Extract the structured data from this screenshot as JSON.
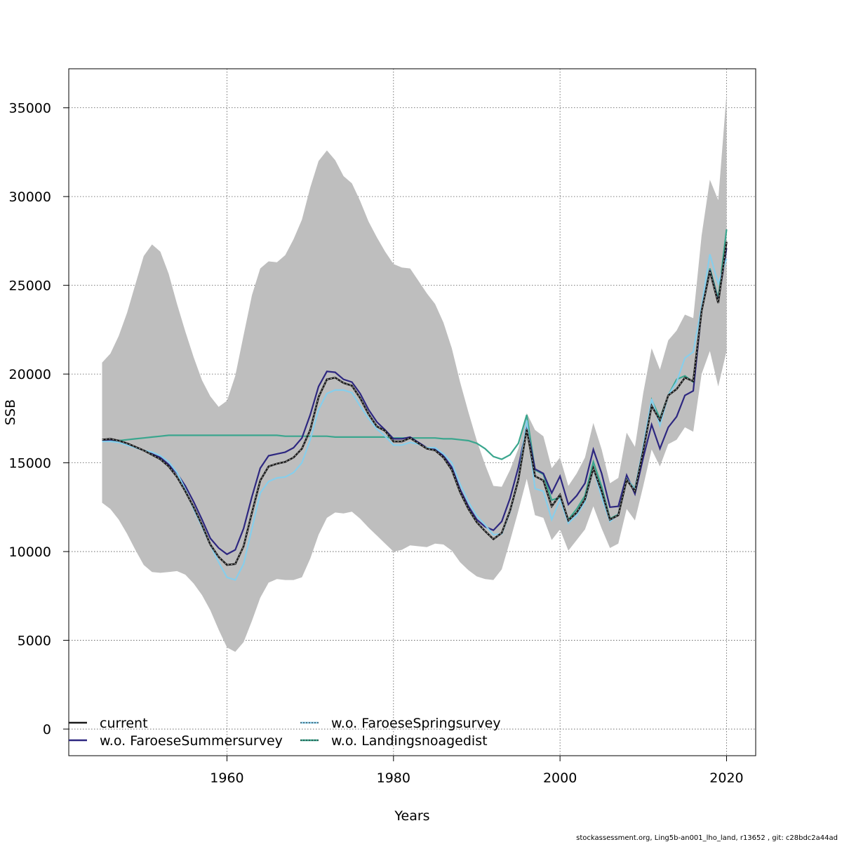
{
  "chart_data": {
    "type": "line",
    "xlabel": "Years",
    "ylabel": "SSB",
    "xlim": [
      1941,
      2023.5
    ],
    "ylim": [
      -1500,
      37200
    ],
    "x_ticks": [
      1960,
      1980,
      2000,
      2020
    ],
    "x_tick_labels": [
      "1960",
      "1980",
      "2000",
      "2020"
    ],
    "y_ticks": [
      0,
      5000,
      10000,
      15000,
      20000,
      25000,
      30000,
      35000
    ],
    "y_tick_labels": [
      "0",
      "5000",
      "10000",
      "15000",
      "20000",
      "25000",
      "30000",
      "35000"
    ],
    "grid": true,
    "legend_position": "bottom-left",
    "years": [
      1945,
      1946,
      1947,
      1948,
      1949,
      1950,
      1951,
      1952,
      1953,
      1954,
      1955,
      1956,
      1957,
      1958,
      1959,
      1960,
      1961,
      1962,
      1963,
      1964,
      1965,
      1966,
      1967,
      1968,
      1969,
      1970,
      1971,
      1972,
      1973,
      1974,
      1975,
      1976,
      1977,
      1978,
      1979,
      1980,
      1981,
      1982,
      1983,
      1984,
      1985,
      1986,
      1987,
      1988,
      1989,
      1990,
      1991,
      1992,
      1993,
      1994,
      1995,
      1996,
      1997,
      1998,
      1999,
      2000,
      2001,
      2002,
      2003,
      2004,
      2005,
      2006,
      2007,
      2008,
      2009,
      2010,
      2011,
      2012,
      2013,
      2014,
      2015,
      2016,
      2017,
      2018,
      2019,
      2020
    ],
    "band": {
      "color": "#bebebe",
      "lower": [
        12750,
        12400,
        11800,
        11000,
        10100,
        9250,
        8850,
        8800,
        8850,
        8900,
        8700,
        8200,
        7550,
        6700,
        5600,
        4600,
        4350,
        4900,
        6100,
        7400,
        8250,
        8450,
        8400,
        8400,
        8550,
        9600,
        10950,
        11900,
        12200,
        12150,
        12250,
        11850,
        11350,
        10900,
        10450,
        10000,
        10100,
        10350,
        10300,
        10250,
        10450,
        10400,
        10050,
        9400,
        8950,
        8600,
        8450,
        8400,
        9000,
        10600,
        12300,
        14100,
        12050,
        11900,
        10650,
        11250,
        10050,
        10650,
        11250,
        12550,
        11300,
        10200,
        10450,
        12400,
        11750,
        13700,
        15750,
        14800,
        16050,
        16300,
        17000,
        16750,
        20000,
        21300,
        19300,
        21300
      ],
      "upper": [
        20650,
        21150,
        22150,
        23450,
        25050,
        26650,
        27300,
        26900,
        25650,
        23950,
        22400,
        20950,
        19650,
        18750,
        18150,
        18500,
        19900,
        22200,
        24450,
        25950,
        26350,
        26300,
        26700,
        27600,
        28700,
        30500,
        32000,
        32600,
        32050,
        31150,
        30750,
        29750,
        28600,
        27700,
        26900,
        26200,
        26000,
        25950,
        25250,
        24550,
        23950,
        22900,
        21450,
        19550,
        17850,
        16250,
        14900,
        13700,
        13650,
        14600,
        15800,
        17800,
        16850,
        16500,
        14700,
        15300,
        13700,
        14400,
        15300,
        17250,
        15750,
        13850,
        14150,
        16700,
        15900,
        18950,
        21450,
        20250,
        21900,
        22450,
        23350,
        23150,
        27800,
        30950,
        29800,
        35800
      ]
    },
    "series": [
      {
        "name": "current",
        "color": "#1a1a1a",
        "style": "solid",
        "values": [
          16300,
          16350,
          16250,
          16100,
          15900,
          15700,
          15450,
          15200,
          14800,
          14200,
          13400,
          12500,
          11500,
          10400,
          9700,
          9250,
          9300,
          10300,
          12200,
          14000,
          14800,
          14950,
          15050,
          15300,
          15800,
          16850,
          18700,
          19700,
          19800,
          19500,
          19350,
          18650,
          17750,
          17050,
          16800,
          16200,
          16200,
          16400,
          16100,
          15800,
          15700,
          15300,
          14600,
          13350,
          12400,
          11650,
          11150,
          10700,
          11050,
          12300,
          14050,
          16900,
          14250,
          14000,
          12550,
          13200,
          11750,
          12200,
          12950,
          14700,
          13400,
          11800,
          12050,
          14050,
          13400,
          15700,
          18200,
          17400,
          18800,
          19150,
          19800,
          19600,
          23550,
          25800,
          24000,
          27450
        ]
      },
      {
        "name": "w.o. FaroeseSummersurvey",
        "color": "#2d2780",
        "style": "solid",
        "values": [
          16250,
          16300,
          16250,
          16100,
          15900,
          15700,
          15500,
          15300,
          14900,
          14400,
          13700,
          12800,
          11800,
          10750,
          10200,
          9850,
          10100,
          11300,
          13100,
          14700,
          15400,
          15500,
          15600,
          15850,
          16400,
          17700,
          19300,
          20150,
          20100,
          19700,
          19550,
          18900,
          18000,
          17300,
          16850,
          16350,
          16350,
          16450,
          16150,
          15850,
          15750,
          15400,
          14750,
          13500,
          12550,
          11800,
          11400,
          11200,
          11700,
          13000,
          14750,
          17050,
          14650,
          14400,
          13300,
          14250,
          12650,
          13150,
          13850,
          15750,
          14400,
          12500,
          12550,
          14300,
          13250,
          15300,
          17150,
          15800,
          17000,
          17600,
          18800,
          19050,
          23600,
          25850,
          24100,
          27100
        ]
      },
      {
        "name": "w.o. FaroeseSpringsurvey",
        "color": "#87ceeb",
        "style": "solid",
        "values": [
          16200,
          16200,
          16150,
          16000,
          15850,
          15700,
          15600,
          15400,
          15050,
          14450,
          13500,
          12400,
          11400,
          10400,
          9400,
          8550,
          8400,
          9300,
          11300,
          13300,
          13950,
          14150,
          14200,
          14450,
          15000,
          16300,
          18000,
          18900,
          19100,
          19100,
          18950,
          18200,
          17500,
          16900,
          16500,
          16000,
          16000,
          16150,
          16050,
          15850,
          15850,
          15500,
          15000,
          13800,
          12800,
          12000,
          11500,
          10950,
          11000,
          12250,
          14100,
          17400,
          13550,
          13400,
          11800,
          12950,
          11600,
          12050,
          12800,
          14700,
          13050,
          11700,
          12100,
          14100,
          13500,
          15950,
          18600,
          17100,
          18800,
          19550,
          20900,
          21250,
          23800,
          26750,
          25100,
          26500
        ]
      },
      {
        "name": "w.o. Landingsnoagedist",
        "color": "#3aa68e",
        "style": "solid",
        "values": [
          16250,
          16250,
          16250,
          16300,
          16350,
          16400,
          16450,
          16500,
          16550,
          16550,
          16550,
          16550,
          16550,
          16550,
          16550,
          16550,
          16550,
          16550,
          16550,
          16550,
          16550,
          16550,
          16500,
          16500,
          16500,
          16500,
          16500,
          16500,
          16450,
          16450,
          16450,
          16450,
          16450,
          16450,
          16450,
          16400,
          16400,
          16400,
          16400,
          16400,
          16400,
          16350,
          16350,
          16300,
          16250,
          16100,
          15800,
          15350,
          15200,
          15450,
          16100,
          17700,
          14600,
          14350,
          12900,
          13050,
          11800,
          12400,
          13150,
          15050,
          13650,
          11850,
          12100,
          14100,
          13550,
          15800,
          18550,
          17500,
          18800,
          19700,
          19900,
          19550,
          23550,
          25950,
          24250,
          28150
        ]
      }
    ],
    "legend": [
      {
        "label": "current",
        "series": 0
      },
      {
        "label": "w.o. FaroeseSummersurvey",
        "series": 1
      },
      {
        "label": "w.o. FaroeseSpringsurvey",
        "series": 2
      },
      {
        "label": "w.o. Landingsnoagedist",
        "series": 3
      }
    ]
  },
  "footer": "stockassessment.org, Ling5b-an001_lho_land, r13652 , git: c28bdc2a44ad"
}
